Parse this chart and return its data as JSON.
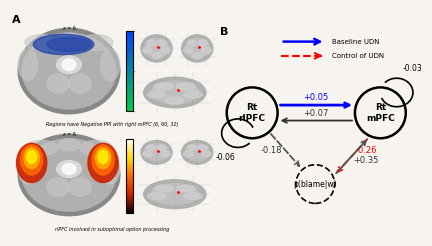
{
  "panel_A_label": "A",
  "panel_B_label": "B",
  "legend_blue": "Baseline UDN",
  "legend_red": "Control of UDN",
  "bg_color": "#f7f4f0",
  "nodes": {
    "rlPFC": [
      0.19,
      0.55
    ],
    "mPFC": [
      0.82,
      0.55
    ],
    "blame": [
      0.5,
      0.2
    ]
  },
  "r_big": 0.125,
  "r_small": 0.095,
  "self_loop_rlPFC_val": "-0.06",
  "self_loop_mPFC_val": "-0.03",
  "conn_rlPFC_mPFC_val": "+0.05",
  "conn_mPFC_rlPFC_val": "+0.07",
  "conn_rlPFC_blame_val": "-0.18",
  "conn_mPFC_blame_val": "-0.26",
  "conn_blame_mPFC_val": "+0.35",
  "caption_top": "Regions have Negative PPI with right mPFC (6, 60, 32)",
  "caption_bot": "rlPFC involved in suboptimal option processing",
  "z_label": "z = 6"
}
